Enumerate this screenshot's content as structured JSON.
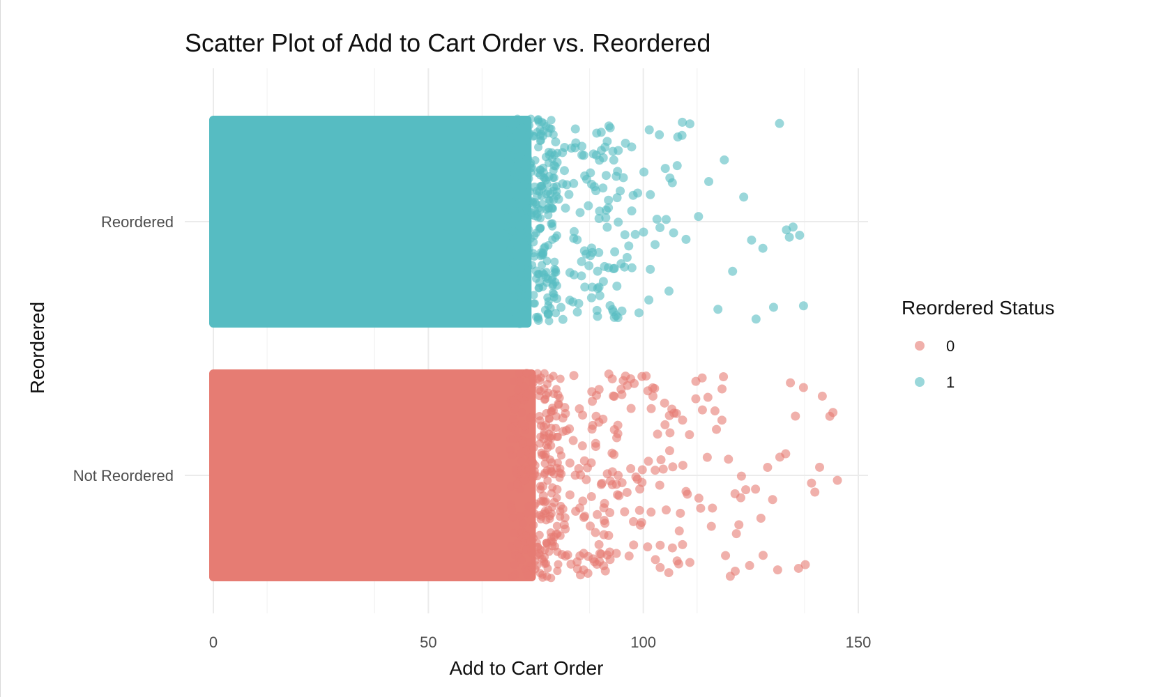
{
  "chart_data": {
    "type": "scatter",
    "title": "Scatter Plot of Add to Cart Order vs. Reordered",
    "xlabel": "Add to Cart Order",
    "ylabel": "Reordered",
    "xlim": [
      0,
      150
    ],
    "x_ticks": [
      "0",
      "50",
      "100",
      "150"
    ],
    "y_categories": [
      "Not Reordered",
      "Reordered"
    ],
    "jitter": "vertical",
    "grid": true,
    "legend": {
      "title": "Reordered Status",
      "position": "right"
    },
    "series": [
      {
        "name": "0",
        "category": "Not Reordered",
        "color": "#E67C73",
        "dense_range": [
          0,
          75
        ],
        "sparse_points": [
          77,
          79,
          80,
          81,
          82,
          82,
          83,
          84,
          85,
          85,
          86,
          86,
          87,
          88,
          88,
          89,
          89,
          90,
          90,
          91,
          91,
          92,
          92,
          93,
          93,
          94,
          94,
          95,
          95,
          96,
          96,
          97,
          97,
          98,
          98,
          99,
          99,
          100,
          100,
          101,
          101,
          102,
          102,
          103,
          103,
          104,
          104,
          105,
          105,
          106,
          106,
          107,
          107,
          108,
          108,
          109,
          109,
          110,
          110,
          111,
          111,
          112,
          112,
          113,
          113,
          114,
          114,
          115,
          115,
          116,
          116,
          117,
          117,
          118,
          118,
          119,
          119,
          120,
          120,
          121,
          121,
          122,
          122,
          123,
          123,
          124,
          125,
          126,
          127,
          128,
          129,
          130,
          131,
          132,
          133,
          134,
          135,
          136,
          137,
          138,
          139,
          140,
          141,
          142,
          143,
          144,
          145
        ]
      },
      {
        "name": "1",
        "category": "Reordered",
        "color": "#56BCC2",
        "dense_range": [
          0,
          74
        ],
        "sparse_points": [
          75,
          76,
          77,
          78,
          79,
          80,
          81,
          82,
          83,
          84,
          84,
          85,
          86,
          86,
          87,
          88,
          88,
          89,
          89,
          90,
          90,
          91,
          91,
          92,
          92,
          93,
          93,
          94,
          94,
          95,
          95,
          96,
          96,
          97,
          97,
          98,
          99,
          100,
          101,
          102,
          103,
          104,
          105,
          106,
          107,
          108,
          109,
          110,
          111,
          113,
          115,
          117,
          119,
          121,
          123,
          125,
          126,
          128,
          130,
          132,
          133,
          134,
          135,
          136,
          137
        ]
      }
    ]
  }
}
